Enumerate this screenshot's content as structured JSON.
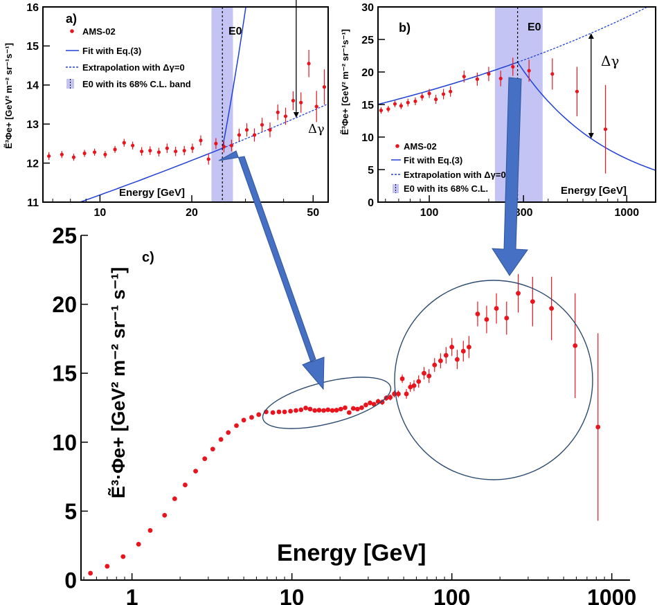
{
  "colors": {
    "data": "#e8141e",
    "fit": "#1f3fd6",
    "band": "#c4c4f4",
    "arrow": "#4670c4",
    "ellipse": "#2b4a6e"
  },
  "chart_data": [
    {
      "id": "a",
      "type": "scatter",
      "panel_label": "a)",
      "ylabel": "Ẽ³Φe+ [GeV² m⁻² sr⁻¹s⁻¹]",
      "xlabel": "Energy [GeV]",
      "xscale": "log",
      "xlim": [
        6.5,
        56
      ],
      "ylim": [
        11,
        16
      ],
      "xticks": [
        {
          "v": 10,
          "label": "10"
        },
        {
          "v": 20,
          "label": "20"
        },
        {
          "v": 50,
          "label": "50"
        }
      ],
      "yticks": [
        {
          "v": 11,
          "label": "11"
        },
        {
          "v": 12,
          "label": "12"
        },
        {
          "v": 13,
          "label": "13"
        },
        {
          "v": 14,
          "label": "14"
        },
        {
          "v": 15,
          "label": "15"
        },
        {
          "v": 16,
          "label": "16"
        }
      ],
      "e0": 25.2,
      "e0_label": "E0",
      "band": [
        23.2,
        27.3
      ],
      "delta_label": "Δγ",
      "delta_at": 44,
      "legend": [
        {
          "label": "AMS-02",
          "style": "marker"
        },
        {
          "label": "Fit with Eq.(3)",
          "style": "solid"
        },
        {
          "label": "Extrapolation with Δγ=0",
          "style": "dashed"
        },
        {
          "label": "E0 with its 68% C.L. band",
          "style": "band"
        }
      ],
      "fit": {
        "e0": 25.2,
        "y0": 12.38,
        "slope_low": 0.11,
        "slope_high": 1.45
      },
      "points": [
        [
          6.8,
          12.18,
          0.1
        ],
        [
          7.5,
          12.22,
          0.09
        ],
        [
          8.2,
          12.15,
          0.09
        ],
        [
          8.9,
          12.25,
          0.09
        ],
        [
          9.6,
          12.28,
          0.09
        ],
        [
          10.4,
          12.22,
          0.09
        ],
        [
          11.2,
          12.35,
          0.09
        ],
        [
          12.0,
          12.52,
          0.1
        ],
        [
          12.8,
          12.45,
          0.1
        ],
        [
          13.7,
          12.3,
          0.11
        ],
        [
          14.6,
          12.32,
          0.11
        ],
        [
          15.6,
          12.28,
          0.11
        ],
        [
          16.6,
          12.38,
          0.12
        ],
        [
          17.7,
          12.3,
          0.12
        ],
        [
          18.9,
          12.32,
          0.12
        ],
        [
          20.1,
          12.38,
          0.12
        ],
        [
          21.4,
          12.58,
          0.13
        ],
        [
          22.7,
          12.1,
          0.14
        ],
        [
          24.0,
          12.5,
          0.14
        ],
        [
          25.5,
          12.42,
          0.15
        ],
        [
          27.0,
          12.45,
          0.15
        ],
        [
          28.6,
          12.72,
          0.16
        ],
        [
          30.3,
          12.85,
          0.17
        ],
        [
          32.1,
          12.72,
          0.17
        ],
        [
          34.0,
          12.98,
          0.18
        ],
        [
          36.1,
          12.85,
          0.19
        ],
        [
          38.3,
          13.3,
          0.2
        ],
        [
          40.6,
          13.2,
          0.22
        ],
        [
          43.0,
          13.6,
          0.24
        ],
        [
          45.6,
          13.55,
          0.26
        ],
        [
          48.4,
          14.55,
          0.35
        ],
        [
          51.3,
          13.45,
          0.4
        ],
        [
          54.4,
          13.95,
          0.45
        ]
      ]
    },
    {
      "id": "b",
      "type": "scatter",
      "panel_label": "b)",
      "ylabel": "Ẽ³Φe+ [GeV² m⁻² sr⁻¹s⁻¹]",
      "xlabel": "Energy [GeV]",
      "xscale": "log",
      "xlim": [
        55,
        1400
      ],
      "ylim": [
        0,
        30
      ],
      "xticks": [
        {
          "v": 100,
          "label": "100"
        },
        {
          "v": 300,
          "label": "300"
        },
        {
          "v": 1000,
          "label": "1000"
        }
      ],
      "yticks": [
        {
          "v": 0,
          "label": "0"
        },
        {
          "v": 5,
          "label": "5"
        },
        {
          "v": 10,
          "label": "10"
        },
        {
          "v": 15,
          "label": "15"
        },
        {
          "v": 20,
          "label": "20"
        },
        {
          "v": 25,
          "label": "25"
        },
        {
          "v": 30,
          "label": "30"
        }
      ],
      "e0": 280,
      "e0_label": "E0",
      "band": [
        215,
        375
      ],
      "delta_label": "Δγ",
      "delta_at": 660,
      "legend": [
        {
          "label": "AMS-02",
          "style": "marker"
        },
        {
          "label": "Fit with Eq.(3)",
          "style": "solid"
        },
        {
          "label": "Extrapolation with Δγ=0",
          "style": "dashed"
        },
        {
          "label": "E0 with its 68% C.L.",
          "style": "band"
        }
      ],
      "fit": {
        "e0": 280,
        "y0": 21.5,
        "slope_low": 0.22,
        "slope_high": -0.92
      },
      "points": [
        [
          57,
          14.1,
          0.5
        ],
        [
          62,
          14.3,
          0.5
        ],
        [
          67,
          15.1,
          0.5
        ],
        [
          72,
          14.8,
          0.5
        ],
        [
          78,
          15.3,
          0.6
        ],
        [
          85,
          15.5,
          0.6
        ],
        [
          92,
          16.2,
          0.6
        ],
        [
          100,
          16.7,
          0.7
        ],
        [
          108,
          15.8,
          0.7
        ],
        [
          118,
          16.6,
          0.8
        ],
        [
          128,
          17.0,
          0.8
        ],
        [
          150,
          19.3,
          0.9
        ],
        [
          175,
          18.9,
          1.0
        ],
        [
          200,
          19.7,
          1.1
        ],
        [
          230,
          19.0,
          1.2
        ],
        [
          265,
          20.8,
          1.4
        ],
        [
          320,
          20.2,
          1.7
        ],
        [
          420,
          19.7,
          2.4
        ],
        [
          560,
          17.0,
          3.8
        ],
        [
          780,
          11.2,
          6.8
        ]
      ]
    },
    {
      "id": "c",
      "type": "scatter",
      "panel_label": "c)",
      "ylabel": "Ẽ³·Φe+ [GeV² m⁻² sr⁻¹ s⁻¹]",
      "xlabel": "Energy [GeV]",
      "xscale": "log",
      "xlim": [
        0.48,
        1300
      ],
      "ylim": [
        0,
        25
      ],
      "xticks": [
        {
          "v": 1,
          "label": "1"
        },
        {
          "v": 10,
          "label": "10"
        },
        {
          "v": 100,
          "label": "100"
        },
        {
          "v": 1000,
          "label": "1000"
        }
      ],
      "yticks": [
        {
          "v": 0,
          "label": "0"
        },
        {
          "v": 5,
          "label": "5"
        },
        {
          "v": 10,
          "label": "10"
        },
        {
          "v": 15,
          "label": "15"
        },
        {
          "v": 20,
          "label": "20"
        },
        {
          "v": 25,
          "label": "25"
        }
      ],
      "points": [
        [
          0.55,
          0.5,
          0
        ],
        [
          0.7,
          1.0,
          0
        ],
        [
          0.88,
          1.7,
          0
        ],
        [
          1.1,
          2.6,
          0
        ],
        [
          1.3,
          3.6,
          0
        ],
        [
          1.6,
          4.7,
          0
        ],
        [
          1.85,
          5.9,
          0
        ],
        [
          2.15,
          6.9,
          0
        ],
        [
          2.5,
          7.9,
          0
        ],
        [
          2.85,
          8.8,
          0
        ],
        [
          3.2,
          9.5,
          0
        ],
        [
          3.6,
          10.2,
          0
        ],
        [
          4.0,
          10.7,
          0
        ],
        [
          4.5,
          11.2,
          0
        ],
        [
          5.0,
          11.6,
          0
        ],
        [
          5.6,
          11.8,
          0
        ],
        [
          6.2,
          12.0,
          0
        ],
        [
          6.9,
          12.2,
          0
        ],
        [
          7.6,
          12.15,
          0.1
        ],
        [
          8.3,
          12.2,
          0.1
        ],
        [
          9.0,
          12.2,
          0.1
        ],
        [
          9.8,
          12.25,
          0.1
        ],
        [
          10.6,
          12.3,
          0.1
        ],
        [
          11.4,
          12.35,
          0.1
        ],
        [
          12.2,
          12.48,
          0.1
        ],
        [
          13.0,
          12.4,
          0.1
        ],
        [
          13.9,
          12.3,
          0.1
        ],
        [
          14.8,
          12.32,
          0.1
        ],
        [
          15.8,
          12.3,
          0.1
        ],
        [
          16.8,
          12.35,
          0.1
        ],
        [
          17.9,
          12.3,
          0.1
        ],
        [
          19.0,
          12.32,
          0.1
        ],
        [
          20.2,
          12.4,
          0.15
        ],
        [
          21.5,
          12.5,
          0.15
        ],
        [
          22.8,
          12.15,
          0.15
        ],
        [
          24.2,
          12.45,
          0.15
        ],
        [
          25.7,
          12.4,
          0.15
        ],
        [
          27.3,
          12.5,
          0.15
        ],
        [
          29.0,
          12.7,
          0.18
        ],
        [
          30.8,
          12.85,
          0.18
        ],
        [
          32.6,
          12.75,
          0.18
        ],
        [
          34.6,
          12.95,
          0.2
        ],
        [
          36.7,
          12.9,
          0.2
        ],
        [
          38.9,
          13.2,
          0.2
        ],
        [
          41.2,
          13.25,
          0.22
        ],
        [
          43.7,
          13.5,
          0.25
        ],
        [
          46.3,
          13.5,
          0.25
        ],
        [
          49.0,
          14.6,
          0.3
        ],
        [
          52.0,
          13.5,
          0.35
        ],
        [
          55.0,
          14.0,
          0.35
        ],
        [
          58.0,
          14.1,
          0.4
        ],
        [
          62.0,
          14.4,
          0.45
        ],
        [
          67.0,
          15.0,
          0.45
        ],
        [
          72.0,
          14.8,
          0.5
        ],
        [
          78.0,
          15.6,
          0.5
        ],
        [
          85.0,
          15.9,
          0.55
        ],
        [
          92.0,
          16.3,
          0.6
        ],
        [
          100,
          16.9,
          0.65
        ],
        [
          108,
          16.0,
          0.7
        ],
        [
          118,
          16.6,
          0.75
        ],
        [
          128,
          16.9,
          0.8
        ],
        [
          145,
          19.3,
          0.9
        ],
        [
          165,
          18.9,
          1.0
        ],
        [
          190,
          19.7,
          1.1
        ],
        [
          220,
          19.0,
          1.2
        ],
        [
          260,
          20.8,
          1.4
        ],
        [
          320,
          20.2,
          1.8
        ],
        [
          420,
          19.7,
          2.3
        ],
        [
          590,
          17.0,
          3.8
        ],
        [
          820,
          11.1,
          6.8
        ]
      ]
    }
  ]
}
